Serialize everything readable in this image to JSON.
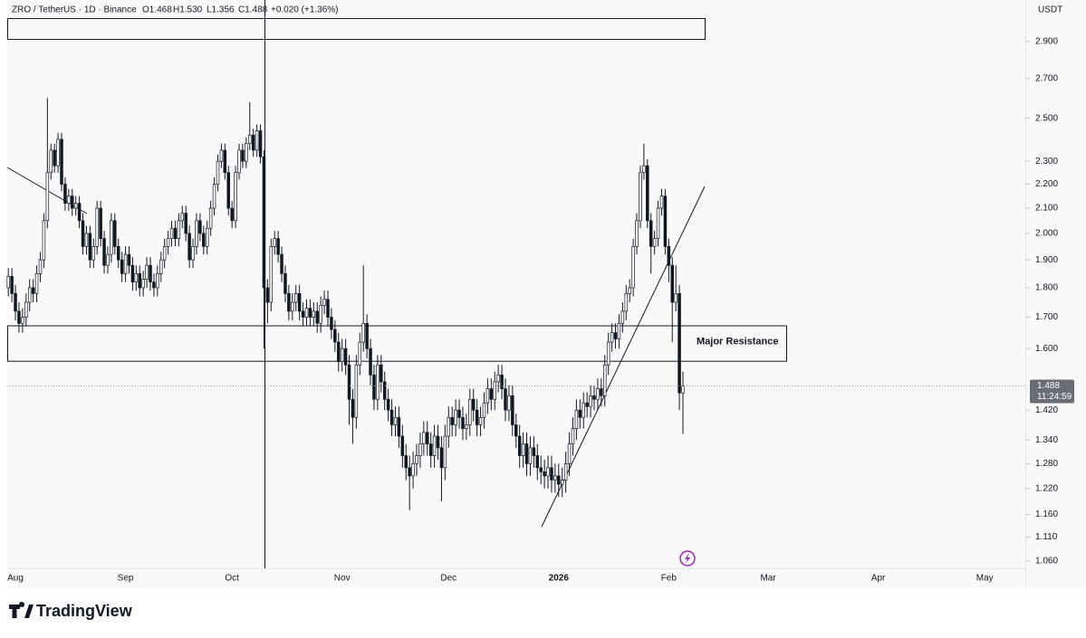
{
  "chart_data": {
    "type": "candlestick",
    "header": {
      "symbol": "ZRO / TetherUS · 1D · Binance",
      "open": "O1.468",
      "high": "H1.530",
      "low": "L1.356",
      "close": "C1.488",
      "change": "+0.020 (+1.36%)"
    },
    "currency": "USDT",
    "last_price": {
      "value": 1.488,
      "label": "1.488",
      "countdown": "11:24:59"
    },
    "annotation": "Major Resistance",
    "resistance_zone": [
      1.561,
      1.672
    ],
    "brand": "TradingView",
    "log_scale": true,
    "ylim": [
      1.045,
      3.144
    ],
    "yticks": [
      {
        "value": 1.06,
        "label": "1.060"
      },
      {
        "value": 1.11,
        "label": "1.110"
      },
      {
        "value": 1.16,
        "label": "1.160"
      },
      {
        "value": 1.22,
        "label": "1.220"
      },
      {
        "value": 1.28,
        "label": "1.280"
      },
      {
        "value": 1.34,
        "label": "1.340"
      },
      {
        "value": 1.42,
        "label": "1.420"
      },
      {
        "value": 1.6,
        "label": "1.600"
      },
      {
        "value": 1.7,
        "label": "1.700"
      },
      {
        "value": 1.8,
        "label": "1.800"
      },
      {
        "value": 1.9,
        "label": "1.900"
      },
      {
        "value": 2.0,
        "label": "2.000"
      },
      {
        "value": 2.1,
        "label": "2.100"
      },
      {
        "value": 2.2,
        "label": "2.200"
      },
      {
        "value": 2.3,
        "label": "2.300"
      },
      {
        "value": 2.5,
        "label": "2.500"
      },
      {
        "value": 2.7,
        "label": "2.700"
      },
      {
        "value": 2.9,
        "label": "2.900"
      }
    ],
    "categories": [
      null,
      null,
      "Aug",
      null,
      null,
      null,
      null,
      null,
      null,
      null,
      null,
      null,
      null,
      null,
      null,
      null,
      null,
      null,
      null,
      null,
      null,
      null,
      null,
      null,
      null,
      null,
      null,
      null,
      null,
      null,
      null,
      null,
      null,
      "Sep",
      null,
      null,
      null,
      null,
      null,
      null,
      null,
      null,
      null,
      null,
      null,
      null,
      null,
      null,
      null,
      null,
      null,
      null,
      null,
      null,
      null,
      null,
      null,
      null,
      null,
      null,
      null,
      null,
      null,
      "Oct",
      null,
      null,
      null,
      null,
      null,
      null,
      null,
      null,
      null,
      null,
      null,
      null,
      null,
      null,
      null,
      null,
      null,
      null,
      null,
      null,
      null,
      null,
      null,
      null,
      null,
      null,
      null,
      null,
      null,
      null,
      "Nov",
      null,
      null,
      null,
      null,
      null,
      null,
      null,
      null,
      null,
      null,
      null,
      null,
      null,
      null,
      null,
      null,
      null,
      null,
      null,
      null,
      null,
      null,
      null,
      null,
      null,
      null,
      null,
      null,
      null,
      "Dec",
      null,
      null,
      null,
      null,
      null,
      null,
      null,
      null,
      null,
      null,
      null,
      null,
      null,
      null,
      null,
      null,
      null,
      null,
      null,
      null,
      null,
      null,
      null,
      null,
      null,
      null,
      null,
      null,
      null,
      null,
      "2026",
      null,
      null,
      null,
      null,
      null,
      null,
      null,
      null,
      null,
      null,
      null,
      null,
      null,
      null,
      null,
      null,
      null,
      null,
      null,
      null,
      null,
      null,
      null,
      null,
      null,
      null,
      null,
      null,
      null,
      null,
      "Feb",
      null,
      null,
      null,
      null,
      null,
      null,
      null,
      null,
      null,
      null,
      null,
      null,
      null,
      null,
      null,
      null,
      null,
      null,
      null,
      null,
      null,
      null,
      null,
      null,
      null,
      null,
      null,
      "Mar",
      null,
      null,
      null,
      null,
      null,
      null,
      null,
      null,
      null,
      null,
      null,
      null,
      null,
      null,
      null,
      null,
      null,
      null,
      null,
      null,
      null,
      null,
      null,
      null,
      null,
      null,
      null,
      null,
      null,
      null,
      "Apr",
      null,
      null,
      null,
      null,
      null,
      null,
      null,
      null,
      null,
      null,
      null,
      null,
      null,
      null,
      null,
      null,
      null,
      null,
      null,
      null,
      null,
      null,
      null,
      null,
      null,
      null,
      null,
      null,
      null,
      "May"
    ],
    "open": [
      1.8,
      1.84,
      1.78,
      1.72,
      1.68,
      1.7,
      1.75,
      1.8,
      1.78,
      1.85,
      1.9,
      2.05,
      2.25,
      2.35,
      2.28,
      2.4,
      2.2,
      2.12,
      2.15,
      2.1,
      2.12,
      2.05,
      1.95,
      2.0,
      1.9,
      1.95,
      2.1,
      1.98,
      1.88,
      1.92,
      2.05,
      1.95,
      1.9,
      1.85,
      1.92,
      1.88,
      1.82,
      1.85,
      1.8,
      1.83,
      1.88,
      1.82,
      1.8,
      1.85,
      1.9,
      1.95,
      1.98,
      2.02,
      1.98,
      2.05,
      2.08,
      2.0,
      1.9,
      1.95,
      2.05,
      2.0,
      1.95,
      2.02,
      2.1,
      2.2,
      2.3,
      2.35,
      2.25,
      2.1,
      2.05,
      2.25,
      2.35,
      2.3,
      2.38,
      2.42,
      2.35,
      2.44,
      2.32,
      1.8,
      1.75,
      1.95,
      1.98,
      1.92,
      1.85,
      1.78,
      1.72,
      1.75,
      1.78,
      1.72,
      1.7,
      1.73,
      1.7,
      1.72,
      1.68,
      1.74,
      1.76,
      1.7,
      1.66,
      1.62,
      1.56,
      1.6,
      1.55,
      1.45,
      1.4,
      1.55,
      1.62,
      1.68,
      1.6,
      1.52,
      1.45,
      1.55,
      1.5,
      1.45,
      1.42,
      1.38,
      1.4,
      1.35,
      1.3,
      1.27,
      1.25,
      1.28,
      1.3,
      1.33,
      1.36,
      1.33,
      1.3,
      1.35,
      1.32,
      1.27,
      1.35,
      1.4,
      1.38,
      1.42,
      1.4,
      1.37,
      1.38,
      1.45,
      1.42,
      1.38,
      1.4,
      1.44,
      1.48,
      1.45,
      1.5,
      1.52,
      1.48,
      1.42,
      1.46,
      1.38,
      1.35,
      1.3,
      1.33,
      1.28,
      1.32,
      1.3,
      1.27,
      1.26,
      1.25,
      1.27,
      1.24,
      1.25,
      1.23,
      1.24,
      1.28,
      1.33,
      1.37,
      1.42,
      1.4,
      1.44,
      1.43,
      1.46,
      1.45,
      1.48,
      1.46,
      1.55,
      1.62,
      1.65,
      1.63,
      1.68,
      1.72,
      1.78,
      1.8,
      1.95,
      2.05,
      2.25,
      2.28,
      2.05,
      1.95,
      1.98,
      2.1,
      2.15,
      1.95,
      1.88,
      1.75,
      1.78,
      1.468,
      null,
      null,
      null,
      null,
      null,
      null,
      null,
      null,
      null,
      null,
      null,
      null,
      null,
      null,
      null,
      null,
      null,
      null,
      null,
      null,
      null,
      null,
      null,
      null,
      null,
      null,
      null,
      null,
      null,
      null,
      null,
      null,
      null,
      null,
      null,
      null,
      null,
      null,
      null,
      null,
      null,
      null,
      null,
      null,
      null,
      null,
      null,
      null,
      null,
      null,
      null,
      null,
      null,
      null,
      null,
      null,
      null,
      null,
      null,
      null,
      null,
      null,
      null,
      null,
      null,
      null,
      null,
      null,
      null,
      null,
      null,
      null,
      null,
      null,
      null,
      null,
      null,
      null,
      null,
      null,
      null,
      null,
      null,
      null,
      null
    ],
    "high": [
      1.87,
      1.87,
      1.81,
      1.75,
      1.73,
      1.78,
      1.83,
      1.83,
      1.88,
      1.93,
      2.08,
      2.6,
      2.38,
      2.38,
      2.43,
      2.43,
      2.23,
      2.18,
      2.18,
      2.15,
      2.15,
      2.08,
      2.03,
      2.03,
      1.98,
      2.13,
      2.13,
      2.01,
      1.95,
      2.08,
      2.08,
      1.98,
      1.93,
      1.95,
      1.95,
      1.91,
      1.88,
      1.88,
      1.86,
      1.91,
      1.91,
      1.85,
      1.88,
      1.93,
      1.98,
      2.01,
      2.05,
      2.05,
      2.08,
      2.11,
      2.11,
      2.03,
      1.98,
      2.08,
      2.08,
      2.03,
      2.05,
      2.13,
      2.23,
      2.33,
      2.38,
      2.38,
      2.28,
      2.13,
      2.28,
      2.38,
      2.38,
      2.41,
      2.58,
      2.45,
      2.47,
      2.47,
      2.35,
      1.83,
      1.98,
      2.01,
      2.01,
      1.95,
      1.88,
      1.81,
      1.78,
      1.81,
      1.81,
      1.75,
      1.76,
      1.76,
      1.75,
      1.75,
      1.77,
      1.79,
      1.79,
      1.73,
      1.69,
      1.65,
      1.63,
      1.63,
      1.58,
      1.48,
      1.58,
      1.65,
      1.88,
      1.71,
      1.63,
      1.55,
      1.58,
      1.58,
      1.53,
      1.48,
      1.45,
      1.43,
      1.43,
      1.38,
      1.33,
      1.3,
      1.31,
      1.33,
      1.36,
      1.39,
      1.39,
      1.36,
      1.38,
      1.38,
      1.35,
      1.38,
      1.43,
      1.43,
      1.45,
      1.45,
      1.43,
      1.41,
      1.48,
      1.48,
      1.45,
      1.43,
      1.47,
      1.51,
      1.51,
      1.53,
      1.55,
      1.55,
      1.51,
      1.49,
      1.49,
      1.41,
      1.38,
      1.36,
      1.36,
      1.35,
      1.35,
      1.33,
      1.3,
      1.29,
      1.3,
      1.3,
      1.28,
      1.28,
      1.27,
      1.31,
      1.36,
      1.4,
      1.45,
      1.45,
      1.47,
      1.47,
      1.49,
      1.49,
      1.51,
      1.51,
      1.58,
      1.65,
      1.68,
      1.68,
      1.71,
      1.75,
      1.81,
      1.83,
      1.98,
      2.08,
      2.28,
      2.38,
      2.31,
      2.08,
      2.01,
      2.13,
      2.18,
      2.18,
      1.98,
      1.91,
      1.88,
      1.81,
      1.53,
      null,
      null,
      null,
      null,
      null,
      null,
      null,
      null,
      null,
      null,
      null,
      null,
      null,
      null,
      null,
      null,
      null,
      null,
      null,
      null,
      null,
      null,
      null,
      null,
      null,
      null,
      null,
      null,
      null,
      null,
      null,
      null,
      null,
      null,
      null,
      null,
      null,
      null,
      null,
      null,
      null,
      null,
      null,
      null,
      null,
      null,
      null,
      null,
      null,
      null,
      null,
      null,
      null,
      null,
      null,
      null,
      null,
      null,
      null,
      null,
      null,
      null,
      null,
      null,
      null,
      null,
      null,
      null,
      null,
      null,
      null,
      null,
      null,
      null,
      null,
      null,
      null,
      null,
      null,
      null,
      null,
      null,
      null,
      null,
      null
    ],
    "low": [
      1.77,
      1.75,
      1.69,
      1.65,
      1.65,
      1.67,
      1.72,
      1.75,
      1.75,
      1.82,
      1.87,
      2.02,
      2.22,
      2.25,
      2.25,
      2.17,
      2.09,
      2.09,
      2.07,
      2.07,
      2.02,
      1.92,
      1.92,
      1.87,
      1.87,
      1.92,
      1.95,
      1.85,
      1.85,
      1.89,
      1.92,
      1.87,
      1.82,
      1.82,
      1.85,
      1.79,
      1.79,
      1.77,
      1.77,
      1.8,
      1.79,
      1.77,
      1.77,
      1.82,
      1.87,
      1.92,
      1.95,
      1.95,
      1.95,
      2.02,
      1.97,
      1.87,
      1.87,
      1.92,
      1.97,
      1.92,
      1.92,
      1.99,
      2.07,
      2.17,
      2.27,
      2.22,
      2.07,
      2.02,
      2.02,
      2.22,
      2.27,
      2.27,
      2.35,
      2.32,
      2.32,
      2.29,
      1.6,
      1.68,
      1.72,
      1.92,
      1.89,
      1.82,
      1.75,
      1.69,
      1.69,
      1.72,
      1.69,
      1.67,
      1.67,
      1.67,
      1.67,
      1.65,
      1.65,
      1.71,
      1.67,
      1.63,
      1.59,
      1.53,
      1.53,
      1.52,
      1.38,
      1.33,
      1.37,
      1.52,
      1.59,
      1.57,
      1.49,
      1.42,
      1.42,
      1.47,
      1.42,
      1.39,
      1.35,
      1.35,
      1.32,
      1.27,
      1.24,
      1.17,
      1.22,
      1.25,
      1.27,
      1.3,
      1.3,
      1.27,
      1.27,
      1.29,
      1.19,
      1.24,
      1.32,
      1.35,
      1.35,
      1.37,
      1.34,
      1.34,
      1.35,
      1.39,
      1.35,
      1.35,
      1.37,
      1.41,
      1.42,
      1.42,
      1.47,
      1.45,
      1.39,
      1.39,
      1.35,
      1.32,
      1.27,
      1.27,
      1.25,
      1.25,
      1.27,
      1.24,
      1.23,
      1.22,
      1.22,
      1.21,
      1.21,
      1.2,
      1.2,
      1.21,
      1.25,
      1.3,
      1.34,
      1.37,
      1.37,
      1.4,
      1.4,
      1.42,
      1.42,
      1.43,
      1.43,
      1.52,
      1.59,
      1.6,
      1.6,
      1.65,
      1.69,
      1.75,
      1.77,
      1.92,
      2.02,
      2.22,
      2.02,
      1.85,
      1.92,
      1.95,
      2.07,
      1.92,
      1.82,
      1.62,
      1.72,
      1.42,
      1.356,
      null,
      null,
      null,
      null,
      null,
      null,
      null,
      null,
      null,
      null,
      null,
      null,
      null,
      null,
      null,
      null,
      null,
      null,
      null,
      null,
      null,
      null,
      null,
      null,
      null,
      null,
      null,
      null,
      null,
      null,
      null,
      null,
      null,
      null,
      null,
      null,
      null,
      null,
      null,
      null,
      null,
      null,
      null,
      null,
      null,
      null,
      null,
      null,
      null,
      null,
      null,
      null,
      null,
      null,
      null,
      null,
      null,
      null,
      null,
      null,
      null,
      null,
      null,
      null,
      null,
      null,
      null,
      null,
      null,
      null,
      null,
      null,
      null,
      null,
      null,
      null,
      null,
      null,
      null,
      null,
      null,
      null,
      null,
      null,
      null
    ],
    "close": [
      1.84,
      1.78,
      1.72,
      1.68,
      1.7,
      1.75,
      1.8,
      1.78,
      1.85,
      1.9,
      2.05,
      2.25,
      2.35,
      2.28,
      2.4,
      2.2,
      2.12,
      2.15,
      2.1,
      2.12,
      2.05,
      1.95,
      2.0,
      1.9,
      1.95,
      2.1,
      1.98,
      1.88,
      1.92,
      2.05,
      1.95,
      1.9,
      1.85,
      1.92,
      1.88,
      1.82,
      1.85,
      1.8,
      1.83,
      1.88,
      1.82,
      1.8,
      1.85,
      1.9,
      1.95,
      1.98,
      2.02,
      1.98,
      2.05,
      2.08,
      2.0,
      1.9,
      1.95,
      2.05,
      2.0,
      1.95,
      2.02,
      2.1,
      2.2,
      2.3,
      2.35,
      2.25,
      2.1,
      2.05,
      2.25,
      2.35,
      2.3,
      2.38,
      2.42,
      2.35,
      2.44,
      2.32,
      1.8,
      1.75,
      1.95,
      1.98,
      1.92,
      1.85,
      1.78,
      1.72,
      1.75,
      1.78,
      1.72,
      1.7,
      1.73,
      1.7,
      1.72,
      1.68,
      1.74,
      1.76,
      1.7,
      1.66,
      1.62,
      1.56,
      1.6,
      1.55,
      1.45,
      1.4,
      1.55,
      1.62,
      1.68,
      1.6,
      1.52,
      1.45,
      1.55,
      1.5,
      1.45,
      1.42,
      1.38,
      1.4,
      1.35,
      1.3,
      1.27,
      1.25,
      1.28,
      1.3,
      1.33,
      1.36,
      1.33,
      1.3,
      1.35,
      1.32,
      1.27,
      1.35,
      1.4,
      1.38,
      1.42,
      1.4,
      1.37,
      1.38,
      1.45,
      1.42,
      1.38,
      1.4,
      1.44,
      1.48,
      1.45,
      1.5,
      1.52,
      1.48,
      1.42,
      1.46,
      1.38,
      1.35,
      1.3,
      1.33,
      1.28,
      1.32,
      1.3,
      1.27,
      1.26,
      1.25,
      1.27,
      1.24,
      1.25,
      1.23,
      1.24,
      1.28,
      1.33,
      1.37,
      1.42,
      1.4,
      1.44,
      1.43,
      1.46,
      1.45,
      1.48,
      1.46,
      1.55,
      1.62,
      1.65,
      1.63,
      1.68,
      1.72,
      1.78,
      1.8,
      1.95,
      2.05,
      2.25,
      2.28,
      2.05,
      1.95,
      1.98,
      2.1,
      2.15,
      1.95,
      1.88,
      1.75,
      1.78,
      1.468,
      1.488,
      null,
      null,
      null,
      null,
      null,
      null,
      null,
      null,
      null,
      null,
      null,
      null,
      null,
      null,
      null,
      null,
      null,
      null,
      null,
      null,
      null,
      null,
      null,
      null,
      null,
      null,
      null,
      null,
      null,
      null,
      null,
      null,
      null,
      null,
      null,
      null,
      null,
      null,
      null,
      null,
      null,
      null,
      null,
      null,
      null,
      null,
      null,
      null,
      null,
      null,
      null,
      null,
      null,
      null,
      null,
      null,
      null,
      null,
      null,
      null,
      null,
      null,
      null,
      null,
      null,
      null,
      null,
      null,
      null,
      null,
      null,
      null,
      null,
      null,
      null,
      null,
      null,
      null,
      null,
      null,
      null,
      null,
      null,
      null,
      null
    ],
    "color": "#131722"
  }
}
